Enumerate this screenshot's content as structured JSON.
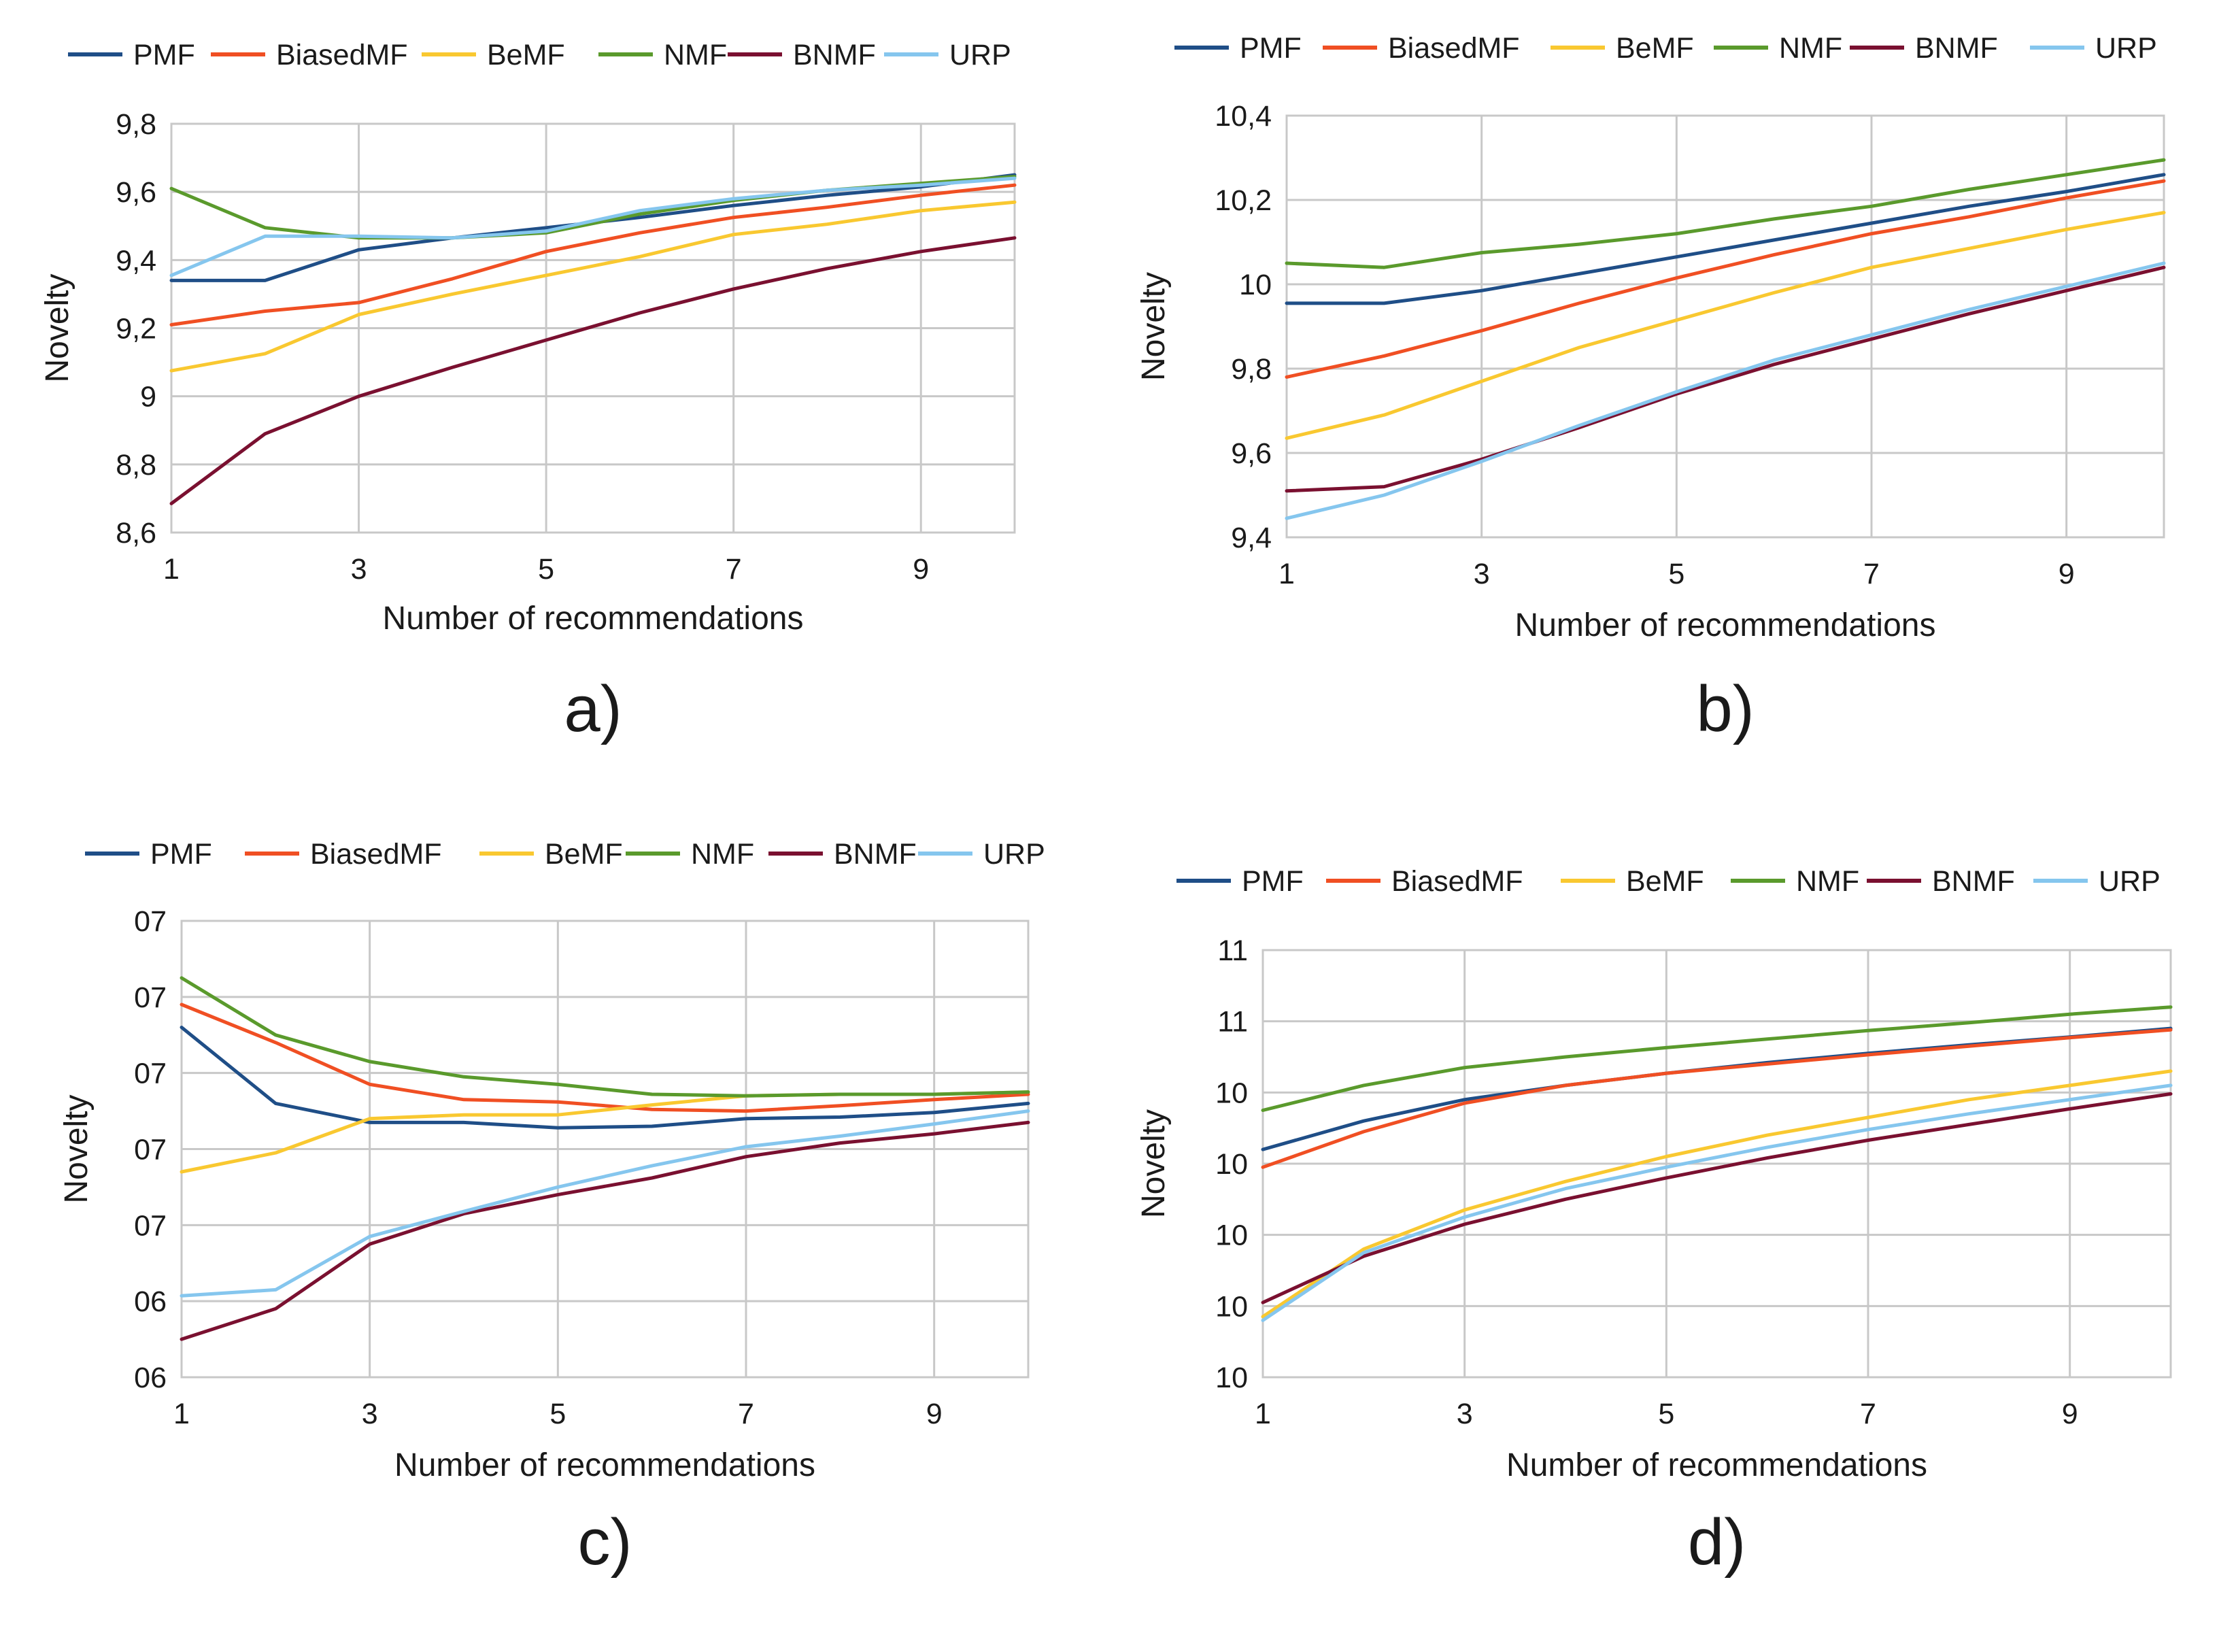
{
  "colors": {
    "PMF": "#1f4e87",
    "BiasedMF": "#f04f23",
    "BeMF": "#f9c830",
    "NMF": "#5a9a2c",
    "BNMF": "#7a1030",
    "URP": "#85c6ee",
    "grid": "#c8c8c8",
    "text": "#1a1a1a"
  },
  "chart_data": [
    {
      "type": "line",
      "panel_label": "a)",
      "xlabel": "Number of recommendations",
      "ylabel": "Novelty",
      "x": [
        1,
        2,
        3,
        4,
        5,
        6,
        7,
        8,
        9,
        10
      ],
      "x_ticks": [
        "1",
        "3",
        "5",
        "7",
        "9"
      ],
      "ylim": [
        8.6,
        9.8
      ],
      "y_ticks": [
        "8,6",
        "8,8",
        "9",
        "9,2",
        "9,4",
        "9,6",
        "9,8"
      ],
      "series": [
        {
          "name": "PMF",
          "values": [
            9.34,
            9.34,
            9.43,
            9.465,
            9.495,
            9.525,
            9.56,
            9.59,
            9.615,
            9.65
          ]
        },
        {
          "name": "BiasedMF",
          "values": [
            9.21,
            9.25,
            9.275,
            9.345,
            9.425,
            9.48,
            9.525,
            9.555,
            9.59,
            9.62
          ]
        },
        {
          "name": "BeMF",
          "values": [
            9.075,
            9.125,
            9.24,
            9.3,
            9.355,
            9.41,
            9.475,
            9.505,
            9.545,
            9.57
          ]
        },
        {
          "name": "NMF",
          "values": [
            9.61,
            9.495,
            9.465,
            9.465,
            9.48,
            9.535,
            9.575,
            9.605,
            9.625,
            9.645
          ]
        },
        {
          "name": "BNMF",
          "values": [
            8.685,
            8.89,
            9.0,
            9.085,
            9.165,
            9.245,
            9.315,
            9.375,
            9.425,
            9.465
          ]
        },
        {
          "name": "URP",
          "values": [
            9.355,
            9.47,
            9.47,
            9.465,
            9.485,
            9.545,
            9.58,
            9.605,
            9.62,
            9.64
          ]
        }
      ]
    },
    {
      "type": "line",
      "panel_label": "b)",
      "xlabel": "Number of recommendations",
      "ylabel": "Novelty",
      "x": [
        1,
        2,
        3,
        4,
        5,
        6,
        7,
        8,
        9,
        10
      ],
      "x_ticks": [
        "1",
        "3",
        "5",
        "7",
        "9"
      ],
      "ylim": [
        9.4,
        10.4
      ],
      "y_ticks": [
        "9,4",
        "9,6",
        "9,8",
        "10",
        "10,2",
        "10,4"
      ],
      "series": [
        {
          "name": "PMF",
          "values": [
            9.955,
            9.955,
            9.985,
            10.025,
            10.065,
            10.105,
            10.145,
            10.185,
            10.22,
            10.26
          ]
        },
        {
          "name": "BiasedMF",
          "values": [
            9.78,
            9.83,
            9.89,
            9.955,
            10.015,
            10.07,
            10.12,
            10.16,
            10.205,
            10.245
          ]
        },
        {
          "name": "BeMF",
          "values": [
            9.635,
            9.69,
            9.77,
            9.85,
            9.915,
            9.98,
            10.04,
            10.085,
            10.13,
            10.17
          ]
        },
        {
          "name": "NMF",
          "values": [
            10.05,
            10.04,
            10.075,
            10.095,
            10.12,
            10.155,
            10.185,
            10.225,
            10.26,
            10.295
          ]
        },
        {
          "name": "BNMF",
          "values": [
            9.51,
            9.52,
            9.585,
            9.66,
            9.74,
            9.81,
            9.87,
            9.93,
            9.985,
            10.04
          ]
        },
        {
          "name": "URP",
          "values": [
            9.445,
            9.5,
            9.58,
            9.665,
            9.745,
            9.82,
            9.88,
            9.94,
            9.995,
            10.05
          ]
        }
      ]
    },
    {
      "type": "line",
      "panel_label": "c)",
      "xlabel": "Number of recommendations",
      "ylabel": "Novelty",
      "x": [
        1,
        2,
        3,
        4,
        5,
        6,
        7,
        8,
        9,
        10
      ],
      "x_ticks": [
        "1",
        "3",
        "5",
        "7",
        "9"
      ],
      "ylim": [
        0,
        6
      ],
      "y_ticks": [
        "06",
        "06",
        "07",
        "07",
        "07",
        "07",
        "07"
      ],
      "series": [
        {
          "name": "PMF",
          "values": [
            4.6,
            3.6,
            3.35,
            3.35,
            3.28,
            3.3,
            3.4,
            3.42,
            3.48,
            3.6
          ]
        },
        {
          "name": "BiasedMF",
          "values": [
            4.9,
            4.4,
            3.85,
            3.65,
            3.62,
            3.52,
            3.5,
            3.57,
            3.65,
            3.72
          ]
        },
        {
          "name": "BeMF",
          "values": [
            2.7,
            2.95,
            3.4,
            3.45,
            3.45,
            3.58,
            3.7,
            3.72,
            3.72,
            3.75
          ]
        },
        {
          "name": "NMF",
          "values": [
            5.25,
            4.5,
            4.15,
            3.95,
            3.85,
            3.72,
            3.7,
            3.72,
            3.72,
            3.75
          ]
        },
        {
          "name": "BNMF",
          "values": [
            0.5,
            0.9,
            1.75,
            2.15,
            2.4,
            2.62,
            2.9,
            3.08,
            3.2,
            3.35
          ]
        },
        {
          "name": "URP",
          "values": [
            1.07,
            1.15,
            1.85,
            2.18,
            2.5,
            2.78,
            3.03,
            3.17,
            3.33,
            3.5
          ]
        }
      ]
    },
    {
      "type": "line",
      "panel_label": "d)",
      "xlabel": "Number of recommendations",
      "ylabel": "Novelty",
      "x": [
        1,
        2,
        3,
        4,
        5,
        6,
        7,
        8,
        9,
        10
      ],
      "x_ticks": [
        "1",
        "3",
        "5",
        "7",
        "9"
      ],
      "ylim": [
        0,
        6
      ],
      "y_ticks": [
        "10",
        "10",
        "10",
        "10",
        "10",
        "11",
        "11"
      ],
      "series": [
        {
          "name": "PMF",
          "values": [
            3.2,
            3.6,
            3.9,
            4.1,
            4.27,
            4.42,
            4.55,
            4.67,
            4.78,
            4.9
          ]
        },
        {
          "name": "BiasedMF",
          "values": [
            2.95,
            3.45,
            3.85,
            4.1,
            4.27,
            4.4,
            4.53,
            4.65,
            4.77,
            4.88
          ]
        },
        {
          "name": "BeMF",
          "values": [
            0.85,
            1.8,
            2.35,
            2.75,
            3.1,
            3.4,
            3.65,
            3.9,
            4.1,
            4.3
          ]
        },
        {
          "name": "NMF",
          "values": [
            3.75,
            4.1,
            4.35,
            4.5,
            4.63,
            4.75,
            4.87,
            4.98,
            5.1,
            5.2
          ]
        },
        {
          "name": "BNMF",
          "values": [
            1.05,
            1.7,
            2.15,
            2.5,
            2.8,
            3.08,
            3.33,
            3.55,
            3.77,
            3.98
          ]
        },
        {
          "name": "URP",
          "values": [
            0.8,
            1.75,
            2.25,
            2.65,
            2.95,
            3.23,
            3.48,
            3.7,
            3.9,
            4.1
          ]
        }
      ]
    }
  ]
}
